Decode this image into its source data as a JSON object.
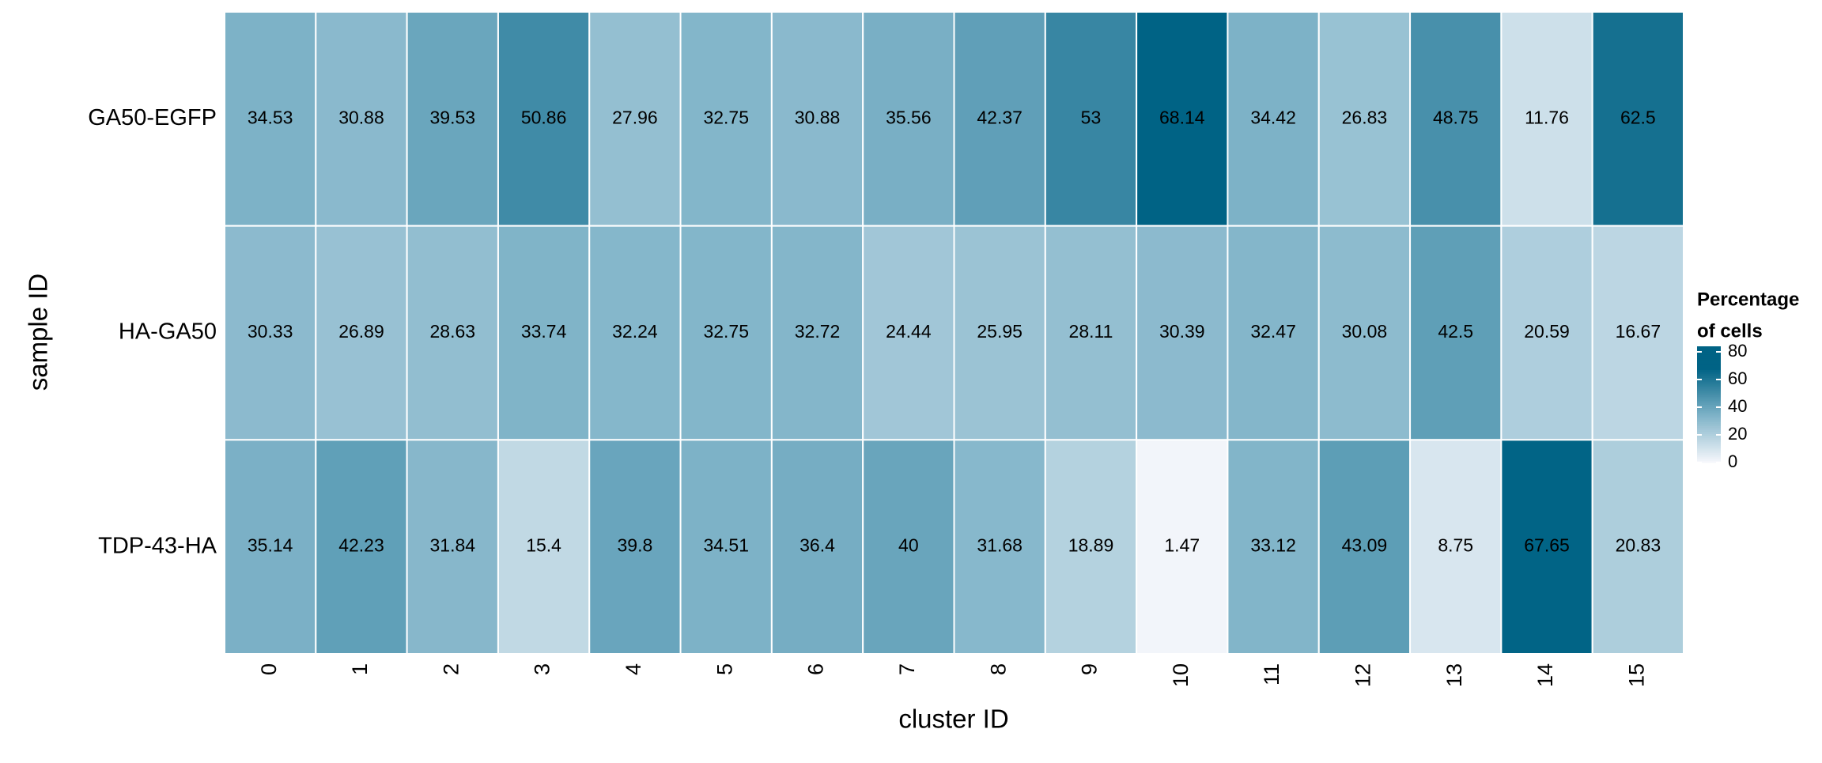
{
  "chart_data": {
    "type": "heatmap",
    "x_label": "cluster ID",
    "y_label": "sample ID",
    "categories": [
      "0",
      "1",
      "2",
      "3",
      "4",
      "5",
      "6",
      "7",
      "8",
      "9",
      "10",
      "11",
      "12",
      "13",
      "14",
      "15"
    ],
    "series": [
      {
        "name": "GA50-EGFP",
        "values": [
          34.53,
          30.88,
          39.53,
          50.86,
          27.96,
          32.75,
          30.88,
          35.56,
          42.37,
          53,
          68.14,
          34.42,
          26.83,
          48.75,
          11.76,
          62.5
        ]
      },
      {
        "name": "HA-GA50",
        "values": [
          30.33,
          26.89,
          28.63,
          33.74,
          32.24,
          32.75,
          32.72,
          24.44,
          25.95,
          28.11,
          30.39,
          32.47,
          30.08,
          42.5,
          20.59,
          16.67
        ]
      },
      {
        "name": "TDP-43-HA",
        "values": [
          35.14,
          42.23,
          31.84,
          15.4,
          39.8,
          34.51,
          36.4,
          40,
          31.68,
          18.89,
          1.47,
          33.12,
          43.09,
          8.75,
          67.65,
          20.83
        ]
      }
    ],
    "legend_title": [
      "Percentage",
      "of cells"
    ],
    "colorbar_lim": [
      0,
      84
    ],
    "colorbar_ticks": [
      0,
      20,
      40,
      60,
      80
    ],
    "colorscale": [
      [
        0,
        "#f7f8fc"
      ],
      [
        34,
        "#7fb3c8"
      ],
      [
        68,
        "#006385"
      ]
    ]
  }
}
